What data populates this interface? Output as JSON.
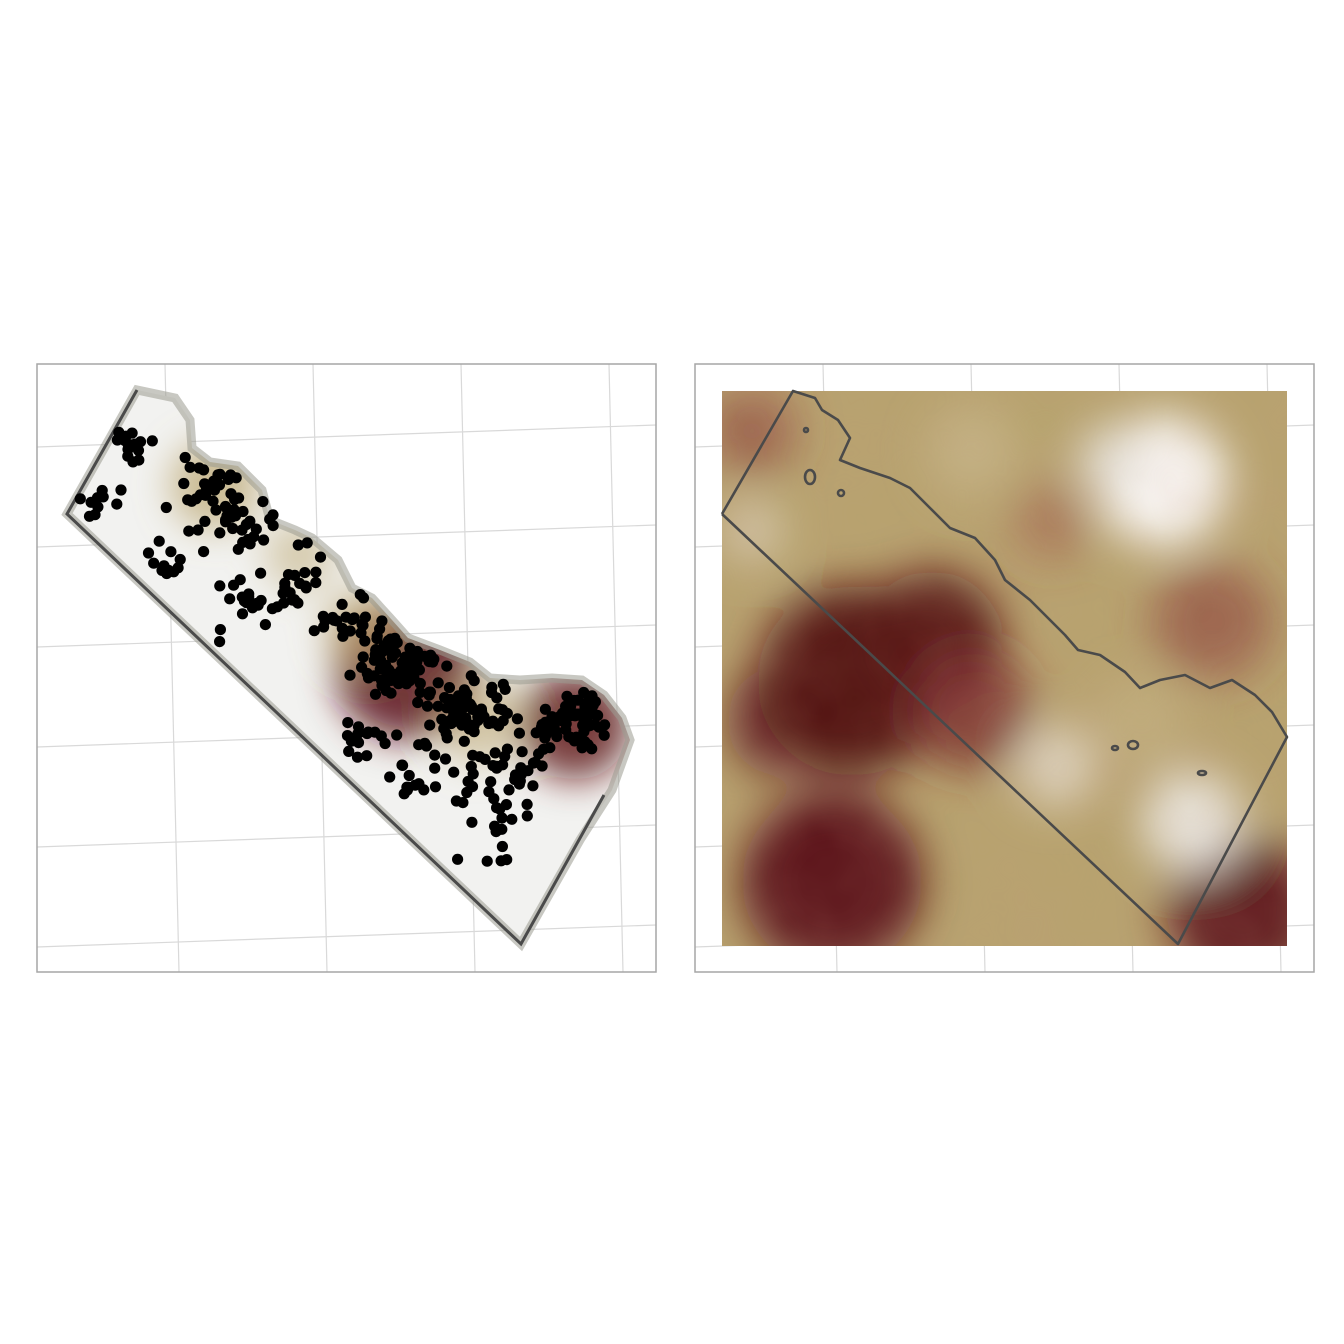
{
  "panels": [
    {
      "id": "left",
      "kind": "point-density-map",
      "palette": {
        "low": "#ffffff",
        "mid": "#b9a46c",
        "high": "#5a0a14"
      },
      "point_color": "#000000",
      "boundary_color": "#4a4a4a",
      "grid_color": "#d9d9d9",
      "frame_color": "#a6a6a6",
      "point_count_approx": 520
    },
    {
      "id": "right",
      "kind": "raster-field-map",
      "palette": {
        "low": "#ffffff",
        "mid": "#b7a36e",
        "high": "#4f0710"
      },
      "boundary_color": "#4a4a4a",
      "grid_color": "#d9d9d9",
      "frame_color": "#a6a6a6"
    }
  ],
  "colors": {
    "background": "#ffffff"
  }
}
